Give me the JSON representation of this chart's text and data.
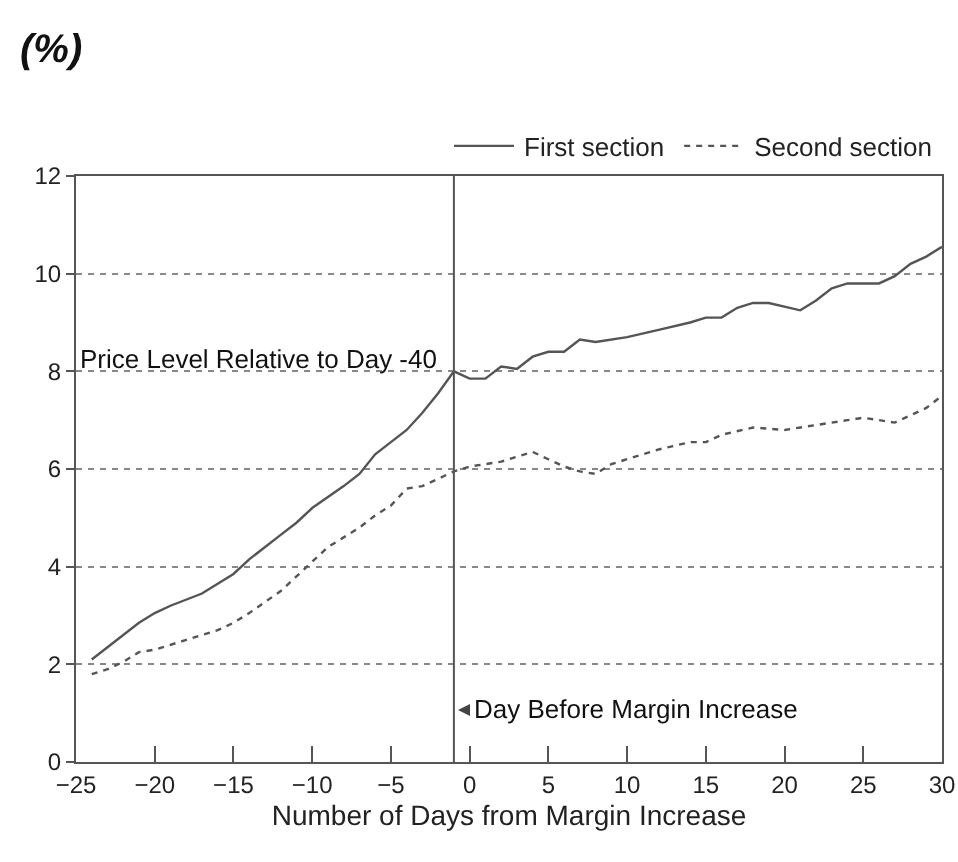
{
  "chart_data": {
    "type": "line",
    "ylabel": "(%)",
    "xlabel": "Number of Days from Margin Increase",
    "annotations": [
      "Price Level Relative to Day -40"
    ],
    "series": [
      {
        "name": "First section",
        "color": "#555555",
        "line_style": "solid",
        "x": [
          -24,
          -22,
          -21,
          -20,
          -19,
          -17,
          -15,
          -14,
          -12,
          -11,
          -10,
          -8,
          -7,
          -6,
          -5,
          -4,
          -3,
          -2,
          -1,
          0,
          1,
          2,
          3,
          4,
          5,
          6,
          7,
          8,
          10,
          12,
          14,
          15,
          16,
          17,
          18,
          19,
          21,
          22,
          23,
          24,
          26,
          27,
          28,
          29,
          30
        ],
        "values": [
          2.1,
          2.6,
          2.85,
          3.05,
          3.2,
          3.45,
          3.85,
          4.15,
          4.65,
          4.9,
          5.2,
          5.65,
          5.9,
          6.3,
          6.55,
          6.8,
          7.15,
          7.55,
          8.0,
          7.85,
          7.85,
          8.1,
          8.05,
          8.3,
          8.4,
          8.4,
          8.65,
          8.6,
          8.7,
          8.85,
          9.0,
          9.1,
          9.1,
          9.3,
          9.4,
          9.4,
          9.25,
          9.45,
          9.7,
          9.8,
          9.8,
          9.95,
          10.2,
          10.35,
          10.55
        ]
      },
      {
        "name": "Second section",
        "color": "#555555",
        "line_style": "dashed",
        "x": [
          -24,
          -23,
          -22,
          -21,
          -20,
          -18,
          -16,
          -15,
          -14,
          -12,
          -11,
          -10,
          -9,
          -8,
          -7,
          -6,
          -5,
          -4,
          -3,
          -2,
          -1,
          0,
          2,
          3,
          4,
          5,
          6,
          7,
          8,
          9,
          11,
          12,
          14,
          15,
          16,
          18,
          20,
          22,
          24,
          25,
          26,
          27,
          28,
          29,
          30
        ],
        "values": [
          1.8,
          1.9,
          2.05,
          2.25,
          2.3,
          2.5,
          2.7,
          2.85,
          3.05,
          3.5,
          3.8,
          4.1,
          4.4,
          4.6,
          4.8,
          5.05,
          5.25,
          5.6,
          5.65,
          5.8,
          5.95,
          6.05,
          6.15,
          6.25,
          6.35,
          6.2,
          6.05,
          5.95,
          5.9,
          6.1,
          6.3,
          6.4,
          6.55,
          6.55,
          6.7,
          6.85,
          6.8,
          6.9,
          7.0,
          7.05,
          7.0,
          6.95,
          7.1,
          7.25,
          7.5
        ]
      }
    ],
    "xlim": [
      -25,
      30
    ],
    "xticks": [
      -25,
      -20,
      -15,
      -10,
      -5,
      0,
      5,
      10,
      15,
      20,
      25,
      30
    ],
    "ylim": [
      0,
      12
    ],
    "yticks": [
      0,
      2,
      4,
      6,
      8,
      10,
      12
    ],
    "ref_lines": [
      {
        "axis": "x",
        "value": -1,
        "label": "Day Before Margin Increase",
        "color": "#555555"
      }
    ],
    "grid": "y",
    "legend": "top right",
    "marker": "none"
  }
}
